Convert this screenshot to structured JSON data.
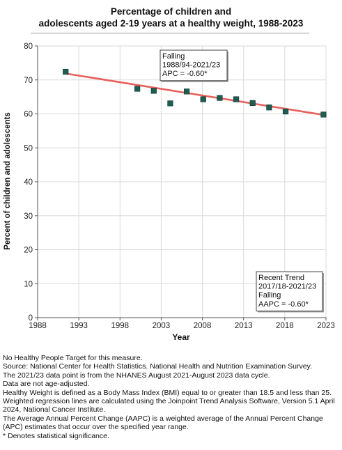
{
  "chart_data": {
    "type": "scatter",
    "title_line1": "Percentage of children and",
    "title_line2": "adolescents aged 2-19 years at a healthy weight, 1988-2023",
    "xlabel": "Year",
    "ylabel": "Percent of children and adolescents",
    "xlim": [
      1988,
      2023
    ],
    "ylim": [
      0,
      80
    ],
    "x_ticks": [
      "1988",
      "1993",
      "1998",
      "2003",
      "2008",
      "2013",
      "2018",
      "2023"
    ],
    "y_ticks": [
      "0",
      "10",
      "20",
      "30",
      "40",
      "50",
      "60",
      "70",
      "80"
    ],
    "grid": true,
    "series": [
      {
        "marker": "square",
        "color": "#1f5c52",
        "x": [
          1991.4,
          2000.1,
          2002.1,
          2004.1,
          2006.1,
          2008.1,
          2010.1,
          2012.1,
          2014.1,
          2016.1,
          2018.1,
          2022.7
        ],
        "y": [
          72.4,
          67.4,
          66.8,
          63.1,
          66.6,
          64.3,
          64.7,
          64.3,
          63.2,
          61.9,
          60.7,
          59.8
        ]
      }
    ],
    "trend_line": {
      "color": "#e8615c",
      "x": [
        1991.4,
        2022.7
      ],
      "y": [
        71.9,
        59.7
      ]
    },
    "annotations": [
      {
        "lines": [
          "Falling",
          "1988/94-2021/23",
          "APC = -0.60*"
        ]
      },
      {
        "lines": [
          "Recent Trend",
          "2017/18-2021/23",
          "Falling",
          "AAPC = -0.60*"
        ]
      }
    ]
  },
  "footnotes": [
    "No Healthy People Target for this measure.",
    "Source: National Center for Health Statistics. National Health and Nutrition Examination Survey.",
    "The 2021/23 data point is from the NHANES August 2021-August 2023 data cycle.",
    "Data are not age-adjusted.",
    "Healthy Weight is defined as a Body Mass Index (BMI) equal to or greater than 18.5 and less than 25.",
    "Weighted regression lines are calculated using the Joinpoint Trend Analysis Software, Version 5.1 April 2024, National Cancer Institute.",
    "The Average Annual Percent Change (AAPC) is a weighted average of the Annual Percent Change (APC) estimates that occur over the specified year range.",
    "* Denotes statistical significance."
  ]
}
